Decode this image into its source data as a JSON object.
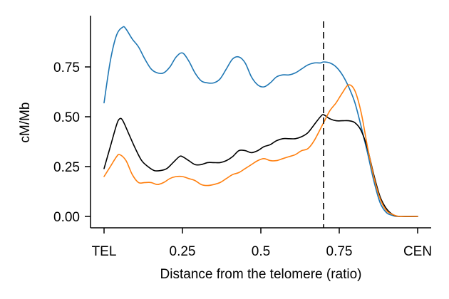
{
  "chart_data": {
    "type": "line",
    "title": "",
    "xlabel": "Distance from the telomere (ratio)",
    "ylabel": "cM/Mb",
    "xlim": [
      -0.04,
      1.04
    ],
    "ylim": [
      -0.05,
      1.0
    ],
    "x_ticks": [
      {
        "value": 0,
        "label": "TEL"
      },
      {
        "value": 0.25,
        "label": "0.25"
      },
      {
        "value": 0.5,
        "label": "0.5"
      },
      {
        "value": 0.75,
        "label": "0.75"
      },
      {
        "value": 1.0,
        "label": "CEN"
      }
    ],
    "y_ticks": [
      {
        "value": 0.0,
        "label": "0.00"
      },
      {
        "value": 0.25,
        "label": "0.25"
      },
      {
        "value": 0.5,
        "label": "0.50"
      },
      {
        "value": 0.75,
        "label": "0.75"
      }
    ],
    "vline": {
      "x": 0.7,
      "style": "dashed",
      "color": "#000000"
    },
    "grid": false,
    "legend": "none",
    "series": [
      {
        "color": "#1f77b4",
        "x": [
          0.0,
          0.02,
          0.04,
          0.06,
          0.07,
          0.09,
          0.11,
          0.13,
          0.15,
          0.17,
          0.19,
          0.21,
          0.23,
          0.25,
          0.27,
          0.29,
          0.31,
          0.33,
          0.35,
          0.37,
          0.39,
          0.41,
          0.43,
          0.45,
          0.47,
          0.49,
          0.51,
          0.53,
          0.55,
          0.57,
          0.59,
          0.61,
          0.63,
          0.65,
          0.67,
          0.69,
          0.7,
          0.72,
          0.74,
          0.76,
          0.78,
          0.8,
          0.82,
          0.84,
          0.86,
          0.88,
          0.9,
          0.92,
          0.94,
          0.96,
          1.0
        ],
        "y": [
          0.57,
          0.78,
          0.91,
          0.95,
          0.94,
          0.89,
          0.85,
          0.79,
          0.74,
          0.72,
          0.72,
          0.75,
          0.8,
          0.82,
          0.78,
          0.72,
          0.68,
          0.67,
          0.67,
          0.69,
          0.74,
          0.79,
          0.8,
          0.77,
          0.7,
          0.66,
          0.65,
          0.67,
          0.7,
          0.71,
          0.71,
          0.72,
          0.74,
          0.76,
          0.77,
          0.77,
          0.775,
          0.77,
          0.75,
          0.71,
          0.65,
          0.57,
          0.45,
          0.32,
          0.18,
          0.07,
          0.02,
          0.005,
          0.0,
          0.0,
          0.0
        ]
      },
      {
        "color": "#000000",
        "x": [
          0.0,
          0.02,
          0.04,
          0.05,
          0.06,
          0.08,
          0.1,
          0.12,
          0.14,
          0.16,
          0.18,
          0.2,
          0.22,
          0.24,
          0.25,
          0.27,
          0.29,
          0.31,
          0.33,
          0.35,
          0.37,
          0.39,
          0.41,
          0.43,
          0.45,
          0.47,
          0.49,
          0.51,
          0.53,
          0.55,
          0.57,
          0.59,
          0.61,
          0.63,
          0.65,
          0.67,
          0.69,
          0.7,
          0.72,
          0.74,
          0.76,
          0.78,
          0.8,
          0.82,
          0.84,
          0.86,
          0.88,
          0.9,
          0.92,
          0.94,
          1.0
        ],
        "y": [
          0.24,
          0.35,
          0.46,
          0.49,
          0.48,
          0.41,
          0.34,
          0.28,
          0.25,
          0.23,
          0.23,
          0.24,
          0.27,
          0.3,
          0.3,
          0.28,
          0.26,
          0.26,
          0.27,
          0.27,
          0.27,
          0.28,
          0.3,
          0.33,
          0.33,
          0.32,
          0.33,
          0.35,
          0.36,
          0.38,
          0.39,
          0.39,
          0.39,
          0.4,
          0.42,
          0.46,
          0.5,
          0.51,
          0.49,
          0.48,
          0.48,
          0.48,
          0.47,
          0.43,
          0.34,
          0.21,
          0.1,
          0.04,
          0.01,
          0.0,
          0.0
        ]
      },
      {
        "color": "#ff7f0e",
        "x": [
          0.0,
          0.02,
          0.04,
          0.05,
          0.07,
          0.09,
          0.11,
          0.13,
          0.15,
          0.17,
          0.19,
          0.21,
          0.23,
          0.25,
          0.27,
          0.29,
          0.31,
          0.33,
          0.35,
          0.37,
          0.39,
          0.41,
          0.43,
          0.45,
          0.47,
          0.49,
          0.51,
          0.53,
          0.55,
          0.57,
          0.59,
          0.61,
          0.63,
          0.65,
          0.67,
          0.7,
          0.72,
          0.74,
          0.76,
          0.78,
          0.8,
          0.82,
          0.84,
          0.86,
          0.88,
          0.9,
          0.92,
          0.94,
          0.96,
          1.0
        ],
        "y": [
          0.2,
          0.25,
          0.3,
          0.31,
          0.28,
          0.21,
          0.17,
          0.17,
          0.17,
          0.16,
          0.17,
          0.19,
          0.2,
          0.2,
          0.19,
          0.18,
          0.16,
          0.155,
          0.16,
          0.17,
          0.19,
          0.21,
          0.22,
          0.24,
          0.26,
          0.28,
          0.29,
          0.28,
          0.28,
          0.29,
          0.3,
          0.31,
          0.33,
          0.34,
          0.38,
          0.47,
          0.53,
          0.57,
          0.62,
          0.66,
          0.63,
          0.52,
          0.35,
          0.2,
          0.09,
          0.03,
          0.01,
          0.0,
          0.0,
          0.0
        ]
      }
    ]
  }
}
